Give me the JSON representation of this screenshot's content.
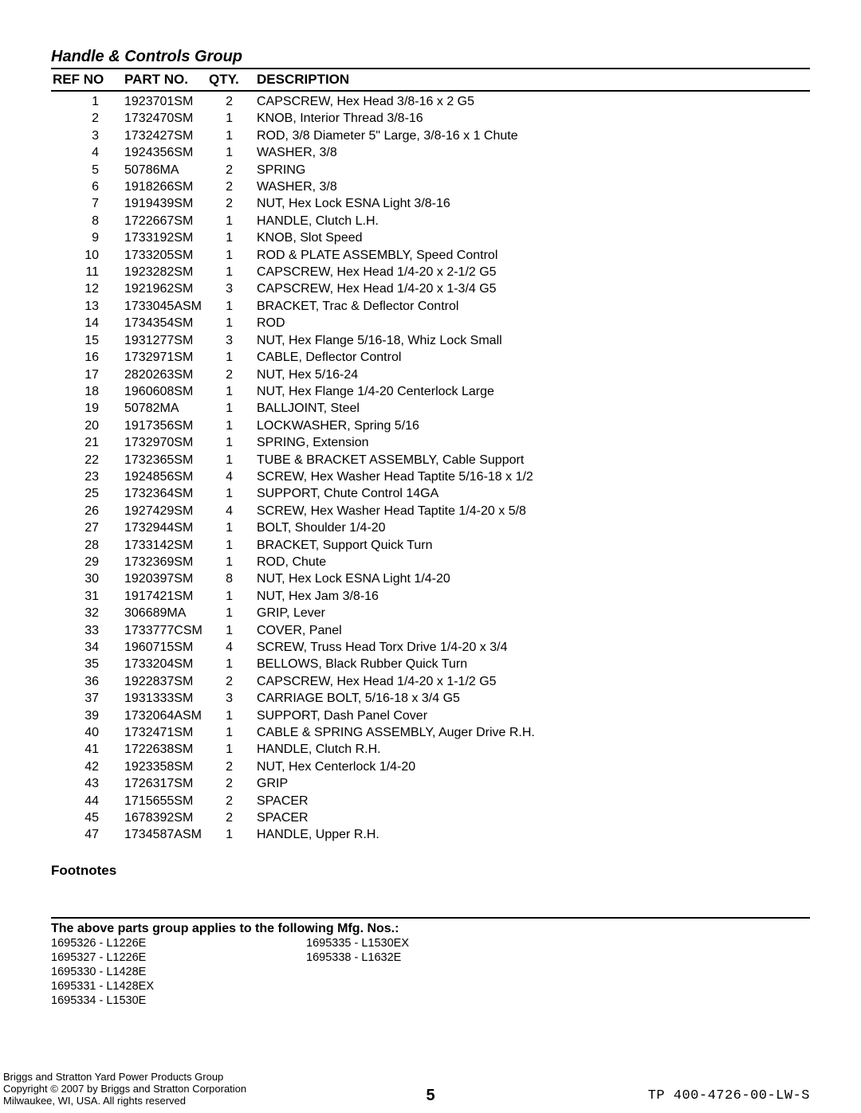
{
  "group_title": "Handle & Controls Group",
  "headers": {
    "ref": "REF NO",
    "part": "PART NO.",
    "qty": "QTY.",
    "desc": "DESCRIPTION"
  },
  "rows": [
    {
      "ref": "1",
      "part": "1923701SM",
      "qty": "2",
      "desc": "CAPSCREW, Hex Head 3/8-16 x 2 G5"
    },
    {
      "ref": "2",
      "part": "1732470SM",
      "qty": "1",
      "desc": "KNOB, Interior Thread 3/8-16"
    },
    {
      "ref": "3",
      "part": "1732427SM",
      "qty": "1",
      "desc": "ROD, 3/8 Diameter 5\" Large, 3/8-16 x 1 Chute"
    },
    {
      "ref": "4",
      "part": "1924356SM",
      "qty": "1",
      "desc": "WASHER, 3/8"
    },
    {
      "ref": "5",
      "part": "50786MA",
      "qty": "2",
      "desc": "SPRING"
    },
    {
      "ref": "6",
      "part": "1918266SM",
      "qty": "2",
      "desc": "WASHER, 3/8"
    },
    {
      "ref": "7",
      "part": "1919439SM",
      "qty": "2",
      "desc": "NUT, Hex Lock ESNA Light 3/8-16"
    },
    {
      "ref": "8",
      "part": "1722667SM",
      "qty": "1",
      "desc": "HANDLE, Clutch L.H."
    },
    {
      "ref": "9",
      "part": "1733192SM",
      "qty": "1",
      "desc": "KNOB, Slot Speed"
    },
    {
      "ref": "10",
      "part": "1733205SM",
      "qty": "1",
      "desc": "ROD & PLATE ASSEMBLY, Speed Control"
    },
    {
      "ref": "11",
      "part": "1923282SM",
      "qty": "1",
      "desc": "CAPSCREW, Hex Head 1/4-20 x 2-1/2 G5"
    },
    {
      "ref": "12",
      "part": "1921962SM",
      "qty": "3",
      "desc": "CAPSCREW, Hex Head 1/4-20 x 1-3/4 G5"
    },
    {
      "ref": "13",
      "part": "1733045ASM",
      "qty": "1",
      "desc": "BRACKET, Trac & Deflector Control"
    },
    {
      "ref": "14",
      "part": "1734354SM",
      "qty": "1",
      "desc": "ROD"
    },
    {
      "ref": "15",
      "part": "1931277SM",
      "qty": "3",
      "desc": "NUT, Hex Flange 5/16-18, Whiz Lock Small"
    },
    {
      "ref": "16",
      "part": "1732971SM",
      "qty": "1",
      "desc": "CABLE, Deflector Control"
    },
    {
      "ref": "17",
      "part": "2820263SM",
      "qty": "2",
      "desc": "NUT, Hex 5/16-24"
    },
    {
      "ref": "18",
      "part": "1960608SM",
      "qty": "1",
      "desc": "NUT, Hex Flange 1/4-20 Centerlock Large"
    },
    {
      "ref": "19",
      "part": "50782MA",
      "qty": "1",
      "desc": "BALLJOINT, Steel"
    },
    {
      "ref": "20",
      "part": "1917356SM",
      "qty": "1",
      "desc": "LOCKWASHER, Spring 5/16"
    },
    {
      "ref": "21",
      "part": "1732970SM",
      "qty": "1",
      "desc": "SPRING, Extension"
    },
    {
      "ref": "22",
      "part": "1732365SM",
      "qty": "1",
      "desc": "TUBE & BRACKET ASSEMBLY, Cable Support"
    },
    {
      "ref": "23",
      "part": "1924856SM",
      "qty": "4",
      "desc": "SCREW, Hex Washer Head Taptite 5/16-18 x 1/2"
    },
    {
      "ref": "25",
      "part": "1732364SM",
      "qty": "1",
      "desc": "SUPPORT, Chute Control 14GA"
    },
    {
      "ref": "26",
      "part": "1927429SM",
      "qty": "4",
      "desc": "SCREW, Hex Washer Head Taptite 1/4-20 x 5/8"
    },
    {
      "ref": "27",
      "part": "1732944SM",
      "qty": "1",
      "desc": "BOLT, Shoulder 1/4-20"
    },
    {
      "ref": "28",
      "part": "1733142SM",
      "qty": "1",
      "desc": "BRACKET, Support Quick Turn"
    },
    {
      "ref": "29",
      "part": "1732369SM",
      "qty": "1",
      "desc": "ROD, Chute"
    },
    {
      "ref": "30",
      "part": "1920397SM",
      "qty": "8",
      "desc": "NUT, Hex Lock ESNA Light 1/4-20"
    },
    {
      "ref": "31",
      "part": "1917421SM",
      "qty": "1",
      "desc": "NUT, Hex Jam 3/8-16"
    },
    {
      "ref": "32",
      "part": "306689MA",
      "qty": "1",
      "desc": "GRIP, Lever"
    },
    {
      "ref": "33",
      "part": "1733777CSM",
      "qty": "1",
      "desc": "COVER, Panel"
    },
    {
      "ref": "34",
      "part": "1960715SM",
      "qty": "4",
      "desc": "SCREW, Truss Head Torx Drive 1/4-20 x 3/4"
    },
    {
      "ref": "35",
      "part": "1733204SM",
      "qty": "1",
      "desc": "BELLOWS, Black Rubber Quick Turn"
    },
    {
      "ref": "36",
      "part": "1922837SM",
      "qty": "2",
      "desc": "CAPSCREW, Hex Head 1/4-20 x 1-1/2 G5"
    },
    {
      "ref": "37",
      "part": "1931333SM",
      "qty": "3",
      "desc": "CARRIAGE BOLT, 5/16-18 x 3/4 G5"
    },
    {
      "ref": "39",
      "part": "1732064ASM",
      "qty": "1",
      "desc": "SUPPORT, Dash Panel Cover"
    },
    {
      "ref": "40",
      "part": "1732471SM",
      "qty": "1",
      "desc": "CABLE & SPRING ASSEMBLY, Auger Drive R.H."
    },
    {
      "ref": "41",
      "part": "1722638SM",
      "qty": "1",
      "desc": "HANDLE, Clutch R.H."
    },
    {
      "ref": "42",
      "part": "1923358SM",
      "qty": "2",
      "desc": "NUT, Hex Centerlock 1/4-20"
    },
    {
      "ref": "43",
      "part": "1726317SM",
      "qty": "2",
      "desc": "GRIP"
    },
    {
      "ref": "44",
      "part": "1715655SM",
      "qty": "2",
      "desc": "SPACER"
    },
    {
      "ref": "45",
      "part": "1678392SM",
      "qty": "2",
      "desc": "SPACER"
    },
    {
      "ref": "47",
      "part": "1734587ASM",
      "qty": "1",
      "desc": "HANDLE, Upper R.H."
    }
  ],
  "footnotes_title": "Footnotes",
  "mfg_title": "The above parts group applies to the following Mfg. Nos.:",
  "mfg_col1": [
    "1695326 - L1226E",
    "1695327 - L1226E",
    "1695330 - L1428E",
    "1695331 - L1428EX",
    "1695334 - L1530E"
  ],
  "mfg_col2": [
    "1695335 - L1530EX",
    "1695338 - L1632E"
  ],
  "footer_left_1": "Briggs and Stratton Yard Power Products Group",
  "footer_left_2": "Copyright © 2007 by Briggs and Stratton Corporation",
  "footer_left_3": "Milwaukee, WI, USA. All rights reserved",
  "page_number": "5",
  "doc_code": "TP 400-4726-00-LW-S"
}
